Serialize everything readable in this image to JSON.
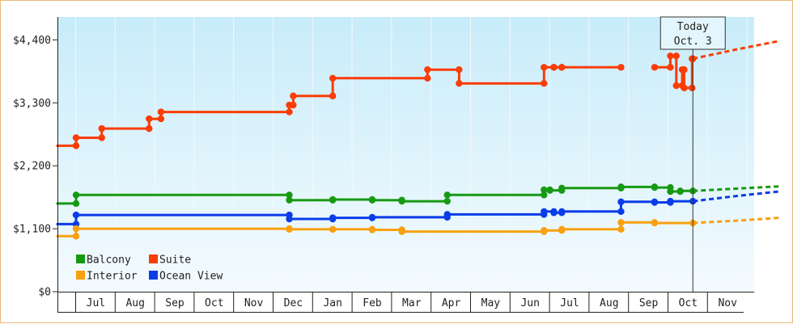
{
  "chart_data": {
    "type": "line",
    "title": "",
    "xlabel": "",
    "ylabel": "",
    "ylim": [
      0,
      4800
    ],
    "y_ticks": [
      {
        "value": 0,
        "label": "$0"
      },
      {
        "value": 1100,
        "label": "$1,100"
      },
      {
        "value": 2200,
        "label": "$2,200"
      },
      {
        "value": 3300,
        "label": "$3,300"
      },
      {
        "value": 4400,
        "label": "$4,400"
      }
    ],
    "months": [
      "Jul",
      "Aug",
      "Sep",
      "Oct",
      "Nov",
      "Dec",
      "Jan",
      "Feb",
      "Mar",
      "Apr",
      "May",
      "Jun",
      "Jul",
      "Aug",
      "Sep",
      "Oct",
      "Nov"
    ],
    "grid": "vertical lines at month boundaries",
    "background": "gradient light blue to white",
    "today": {
      "line1": "Today",
      "line2": "Oct. 3",
      "x": 15.62
    },
    "legend": {
      "placement": "bottom-left",
      "items": [
        {
          "label": "Balcony",
          "color": "#169a12"
        },
        {
          "label": "Suite",
          "color": "#fa3c05"
        },
        {
          "label": "Interior",
          "color": "#f8a010"
        },
        {
          "label": "Ocean View",
          "color": "#0a3ce8"
        }
      ]
    },
    "series": [
      {
        "name": "Suite",
        "color": "#fa3c05",
        "points": [
          [
            -0.5,
            2550
          ],
          [
            0.0,
            2550
          ],
          [
            0.0,
            2690
          ],
          [
            0.65,
            2690
          ],
          [
            0.65,
            2850
          ],
          [
            1.85,
            2850
          ],
          [
            1.85,
            3020
          ],
          [
            2.15,
            3020
          ],
          [
            2.15,
            3140
          ],
          [
            5.4,
            3140
          ],
          [
            5.4,
            3260
          ],
          [
            5.5,
            3260
          ],
          [
            5.5,
            3420
          ],
          [
            6.5,
            3420
          ],
          [
            6.5,
            3730
          ],
          [
            8.9,
            3730
          ],
          [
            8.9,
            3880
          ],
          [
            9.7,
            3880
          ],
          [
            9.7,
            3640
          ],
          [
            11.85,
            3640
          ],
          [
            11.85,
            3920
          ],
          [
            12.1,
            3920
          ],
          [
            12.1,
            3920
          ],
          [
            12.3,
            3920
          ],
          [
            12.3,
            3920
          ],
          [
            13.8,
            3920
          ]
        ],
        "points2": [
          [
            14.65,
            3920
          ],
          [
            15.05,
            3920
          ],
          [
            15.05,
            4120
          ],
          [
            15.2,
            4120
          ],
          [
            15.2,
            3600
          ],
          [
            15.35,
            3600
          ],
          [
            15.35,
            3880
          ],
          [
            15.4,
            3880
          ],
          [
            15.4,
            3560
          ],
          [
            15.6,
            3560
          ],
          [
            15.6,
            4070
          ],
          [
            15.62,
            4070
          ]
        ],
        "forecast": [
          [
            15.62,
            4070
          ],
          [
            16.7,
            4230
          ],
          [
            17.8,
            4380
          ]
        ]
      },
      {
        "name": "Balcony",
        "color": "#169a12",
        "points": [
          [
            -0.5,
            1540
          ],
          [
            0.0,
            1540
          ],
          [
            0.0,
            1690
          ],
          [
            5.4,
            1690
          ],
          [
            5.4,
            1600
          ],
          [
            6.5,
            1600
          ],
          [
            6.5,
            1610
          ],
          [
            7.5,
            1610
          ],
          [
            7.5,
            1600
          ],
          [
            8.25,
            1600
          ],
          [
            8.25,
            1580
          ],
          [
            9.4,
            1580
          ],
          [
            9.4,
            1690
          ],
          [
            11.85,
            1690
          ],
          [
            11.85,
            1780
          ],
          [
            12.0,
            1780
          ],
          [
            12.0,
            1770
          ],
          [
            12.3,
            1770
          ],
          [
            12.3,
            1810
          ],
          [
            13.8,
            1810
          ],
          [
            13.8,
            1830
          ],
          [
            14.65,
            1830
          ],
          [
            14.65,
            1820
          ],
          [
            15.05,
            1820
          ],
          [
            15.05,
            1750
          ],
          [
            15.3,
            1750
          ],
          [
            15.3,
            1760
          ],
          [
            15.62,
            1760
          ]
        ],
        "forecast": [
          [
            15.62,
            1760
          ],
          [
            16.7,
            1800
          ],
          [
            17.8,
            1840
          ]
        ]
      },
      {
        "name": "Ocean View",
        "color": "#0a3ce8",
        "points": [
          [
            -0.5,
            1180
          ],
          [
            0.0,
            1180
          ],
          [
            0.0,
            1340
          ],
          [
            5.4,
            1340
          ],
          [
            5.4,
            1270
          ],
          [
            6.5,
            1270
          ],
          [
            6.5,
            1290
          ],
          [
            7.5,
            1290
          ],
          [
            7.5,
            1300
          ],
          [
            9.4,
            1300
          ],
          [
            9.4,
            1350
          ],
          [
            11.85,
            1350
          ],
          [
            11.85,
            1400
          ],
          [
            12.1,
            1400
          ],
          [
            12.1,
            1380
          ],
          [
            12.3,
            1380
          ],
          [
            12.3,
            1400
          ],
          [
            13.8,
            1400
          ],
          [
            13.8,
            1570
          ],
          [
            14.65,
            1570
          ],
          [
            14.65,
            1560
          ],
          [
            15.05,
            1560
          ],
          [
            15.05,
            1580
          ],
          [
            15.62,
            1580
          ]
        ],
        "forecast": [
          [
            15.62,
            1580
          ],
          [
            16.7,
            1670
          ],
          [
            17.8,
            1750
          ]
        ]
      },
      {
        "name": "Interior",
        "color": "#f8a010",
        "points": [
          [
            -0.5,
            970
          ],
          [
            0.0,
            970
          ],
          [
            0.0,
            1100
          ],
          [
            5.4,
            1100
          ],
          [
            5.4,
            1090
          ],
          [
            6.5,
            1090
          ],
          [
            6.5,
            1090
          ],
          [
            7.5,
            1090
          ],
          [
            7.5,
            1080
          ],
          [
            8.25,
            1080
          ],
          [
            8.25,
            1050
          ],
          [
            11.85,
            1050
          ],
          [
            11.85,
            1070
          ],
          [
            12.3,
            1070
          ],
          [
            12.3,
            1090
          ],
          [
            13.8,
            1090
          ],
          [
            13.8,
            1210
          ],
          [
            14.65,
            1210
          ],
          [
            14.65,
            1200
          ],
          [
            15.62,
            1200
          ]
        ],
        "forecast": [
          [
            15.62,
            1200
          ],
          [
            16.7,
            1240
          ],
          [
            17.8,
            1290
          ]
        ]
      }
    ]
  }
}
